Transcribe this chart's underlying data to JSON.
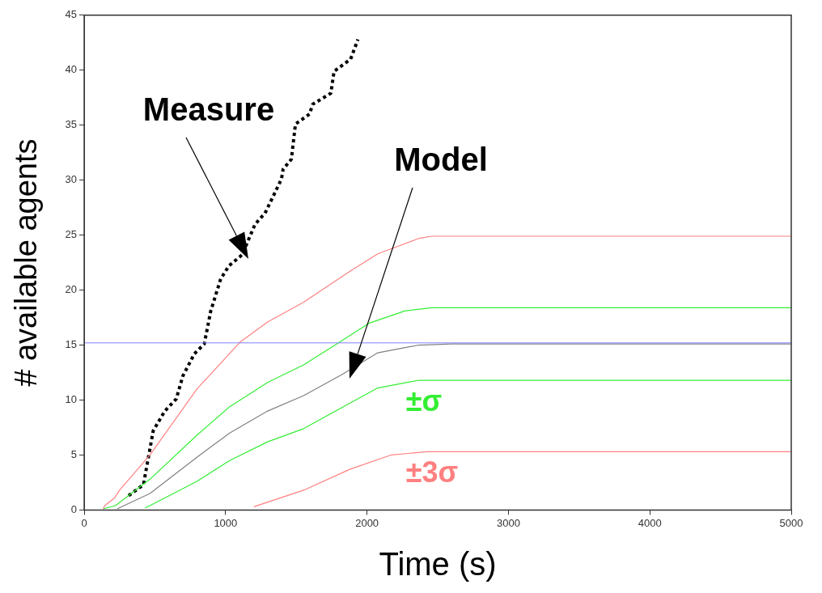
{
  "chart_data": {
    "type": "line",
    "xlabel": "Time (s)",
    "ylabel": "# available agents",
    "xlim": [
      0,
      5000
    ],
    "xticks": [
      0,
      1000,
      2000,
      3000,
      4000,
      5000
    ],
    "ylim": [
      0,
      45
    ],
    "yticks": [
      0,
      5,
      10,
      15,
      20,
      25,
      30,
      35,
      40,
      45
    ],
    "grid": false,
    "legend": false,
    "marker": "none",
    "ref_lines": [
      {
        "axis": "y",
        "value": 15.2,
        "color": "#8080ff"
      }
    ],
    "annotations": [
      "Measure",
      "Model"
    ],
    "series": [
      {
        "color": "#ff8080",
        "x": [
          134,
          145,
          215,
          250,
          465,
          797,
          1105,
          1297,
          1552,
          1878,
          2076,
          2366,
          2459,
          5000
        ],
        "values": [
          0.1,
          0.4,
          1.1,
          1.8,
          5.0,
          11.0,
          15.3,
          17.1,
          18.9,
          21.7,
          23.3,
          24.7,
          24.9,
          24.9
        ]
      },
      {
        "color": "#33ee33",
        "x": [
          134,
          221,
          465,
          797,
          1029,
          1297,
          1552,
          1785,
          2017,
          2267,
          2459,
          5000
        ],
        "values": [
          0.1,
          0.4,
          2.8,
          6.8,
          9.4,
          11.6,
          13.2,
          15.1,
          17.0,
          18.1,
          18.4,
          18.4
        ]
      },
      {
        "color": "#808080",
        "x": [
          233,
          465,
          797,
          1029,
          1297,
          1552,
          1820,
          2076,
          2366,
          2600,
          5000
        ],
        "values": [
          0.1,
          1.5,
          4.8,
          7.0,
          9.0,
          10.4,
          12.3,
          14.3,
          15.0,
          15.1,
          15.1
        ]
      },
      {
        "name": "±σ",
        "color": "#33ee33",
        "x": [
          430,
          465,
          797,
          1029,
          1297,
          1552,
          1820,
          2076,
          2366,
          2600,
          5000
        ],
        "values": [
          0.2,
          0.4,
          2.6,
          4.5,
          6.2,
          7.4,
          9.3,
          11.1,
          11.8,
          11.8,
          11.8
        ]
      },
      {
        "name": "±3σ",
        "color": "#ff8080",
        "x": [
          1200,
          1552,
          1878,
          2169,
          2424,
          5000
        ],
        "values": [
          0.3,
          1.8,
          3.7,
          5.0,
          5.3,
          5.3
        ]
      },
      {
        "color": "#000000",
        "line_style": "dotted",
        "x": [
          314,
          419,
          488,
          570,
          651,
          698,
          779,
          849,
          895,
          965,
          1023,
          1116,
          1209,
          1279,
          1395,
          1407,
          1465,
          1494,
          1593,
          1616,
          1744,
          1767,
          1884,
          1936
        ],
        "values": [
          1.3,
          2.3,
          7.2,
          9.0,
          10.1,
          12.2,
          14.2,
          15.1,
          18.1,
          21.0,
          22.2,
          23.2,
          26.0,
          27.0,
          30.1,
          31.0,
          31.9,
          35.1,
          36.0,
          36.9,
          37.9,
          39.9,
          41.0,
          42.8
        ]
      }
    ]
  }
}
